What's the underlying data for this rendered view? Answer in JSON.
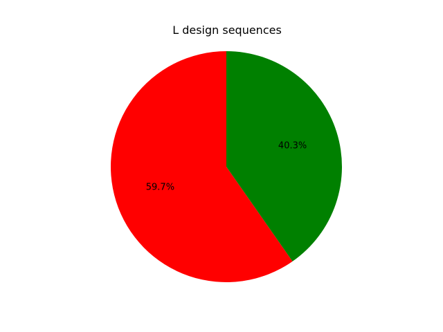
{
  "chart_data": {
    "type": "pie",
    "title": "L design sequences",
    "slices": [
      {
        "label": "59.7%",
        "value": 59.7,
        "color": "#ff0000"
      },
      {
        "label": "40.3%",
        "value": 40.3,
        "color": "#008000"
      }
    ],
    "start_angle_deg": 90,
    "direction": "counterclockwise",
    "legend": "none"
  }
}
